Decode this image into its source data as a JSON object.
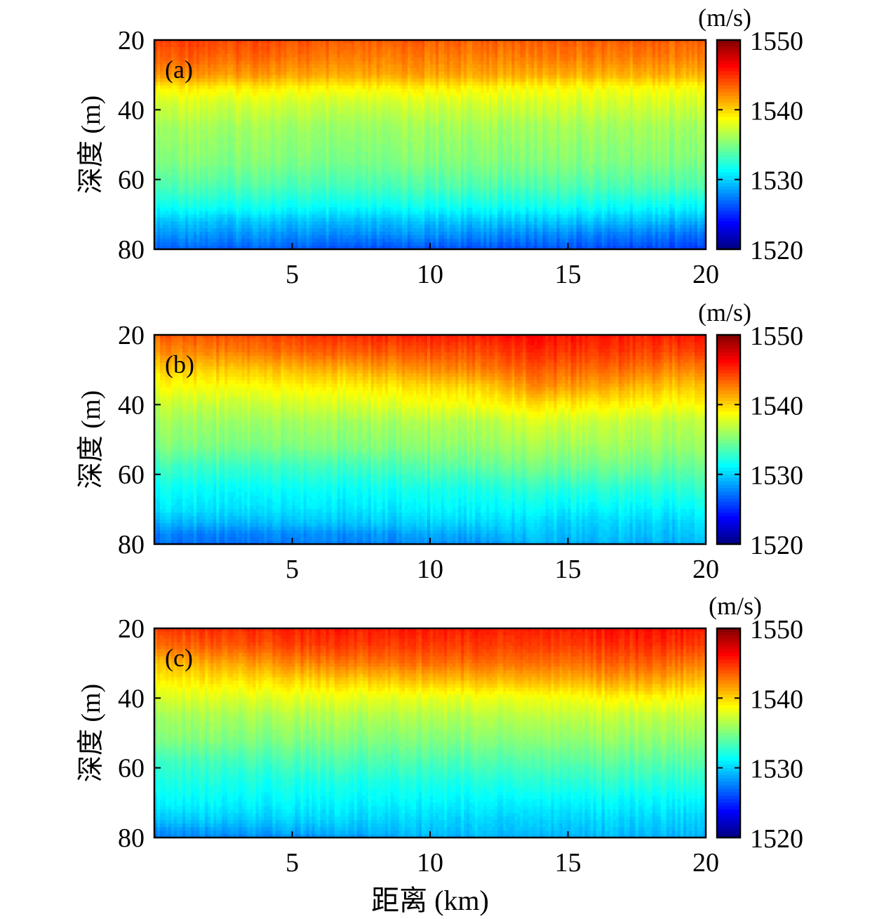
{
  "chart_data": [
    {
      "type": "heatmap",
      "panel_label": "(a)",
      "ylabel": "深度 (m)",
      "xlabel": "",
      "xlim": [
        0,
        20
      ],
      "ylim": [
        20,
        80
      ],
      "y_reversed": true,
      "xticks": [
        5,
        10,
        15,
        20
      ],
      "yticks": [
        20,
        40,
        60,
        80
      ],
      "colorbar": {
        "unit": "(m/s)",
        "range": [
          1520,
          1550
        ],
        "ticks": [
          1520,
          1530,
          1540,
          1550
        ]
      },
      "grid": false,
      "rows": [
        {
          "x": 0,
          "depth": [
            20,
            25,
            30,
            34,
            38,
            45,
            55,
            62,
            68,
            72,
            76,
            80
          ],
          "speed": [
            1544.5,
            1543.5,
            1542.0,
            1539.0,
            1537.5,
            1536.0,
            1535.0,
            1533.5,
            1531.5,
            1529.5,
            1528.0,
            1526.5
          ]
        },
        {
          "x": 5,
          "depth": [
            20,
            25,
            30,
            34,
            38,
            45,
            55,
            62,
            68,
            72,
            76,
            80
          ],
          "speed": [
            1544.0,
            1543.0,
            1541.5,
            1539.0,
            1537.5,
            1536.0,
            1535.0,
            1533.5,
            1531.5,
            1529.5,
            1528.0,
            1526.5
          ]
        },
        {
          "x": 10,
          "depth": [
            20,
            25,
            30,
            34,
            38,
            45,
            55,
            62,
            68,
            72,
            76,
            80
          ],
          "speed": [
            1543.5,
            1542.5,
            1541.5,
            1539.0,
            1537.5,
            1536.0,
            1535.0,
            1533.5,
            1531.5,
            1529.5,
            1528.0,
            1526.0
          ]
        },
        {
          "x": 15,
          "depth": [
            20,
            25,
            30,
            34,
            38,
            45,
            55,
            62,
            68,
            72,
            76,
            80
          ],
          "speed": [
            1543.5,
            1542.5,
            1541.0,
            1538.5,
            1537.5,
            1536.0,
            1535.0,
            1533.5,
            1531.5,
            1529.5,
            1527.5,
            1526.0
          ]
        },
        {
          "x": 20,
          "depth": [
            20,
            25,
            30,
            34,
            38,
            45,
            55,
            62,
            68,
            72,
            76,
            80
          ],
          "speed": [
            1543.5,
            1542.5,
            1541.0,
            1538.5,
            1537.5,
            1536.0,
            1535.0,
            1533.5,
            1531.0,
            1529.0,
            1527.0,
            1525.5
          ]
        }
      ]
    },
    {
      "type": "heatmap",
      "panel_label": "(b)",
      "ylabel": "深度 (m)",
      "xlabel": "",
      "xlim": [
        0,
        20
      ],
      "ylim": [
        20,
        80
      ],
      "y_reversed": true,
      "xticks": [
        5,
        10,
        15,
        20
      ],
      "yticks": [
        20,
        40,
        60,
        80
      ],
      "colorbar": {
        "unit": "(m/s)",
        "range": [
          1520,
          1550
        ],
        "ticks": [
          1520,
          1530,
          1540,
          1550
        ]
      },
      "grid": false,
      "rows": [
        {
          "x": 0,
          "depth": [
            20,
            25,
            30,
            35,
            40,
            45,
            52,
            58,
            64,
            70,
            74,
            77,
            80
          ],
          "speed": [
            1543.5,
            1542.0,
            1540.0,
            1538.5,
            1537.0,
            1536.0,
            1535.0,
            1533.0,
            1531.5,
            1530.5,
            1529.0,
            1527.5,
            1527.0
          ]
        },
        {
          "x": 7,
          "depth": [
            20,
            25,
            30,
            35,
            40,
            45,
            52,
            58,
            64,
            70,
            74,
            77,
            80
          ],
          "speed": [
            1545.0,
            1543.5,
            1541.0,
            1539.0,
            1537.5,
            1536.0,
            1535.0,
            1533.0,
            1531.5,
            1530.5,
            1529.5,
            1528.0,
            1527.5
          ]
        },
        {
          "x": 12,
          "depth": [
            20,
            25,
            30,
            35,
            40,
            45,
            52,
            58,
            64,
            70,
            74,
            77,
            80
          ],
          "speed": [
            1545.5,
            1544.0,
            1542.5,
            1540.0,
            1538.5,
            1536.5,
            1535.5,
            1534.0,
            1532.0,
            1531.0,
            1530.0,
            1529.0,
            1528.0
          ]
        },
        {
          "x": 14,
          "depth": [
            20,
            25,
            30,
            35,
            40,
            45,
            52,
            58,
            64,
            70,
            74,
            77,
            80
          ],
          "speed": [
            1546.0,
            1545.0,
            1543.5,
            1542.0,
            1539.5,
            1537.5,
            1536.0,
            1534.5,
            1532.5,
            1531.0,
            1530.0,
            1529.5,
            1529.0
          ]
        },
        {
          "x": 17,
          "depth": [
            20,
            25,
            30,
            35,
            40,
            45,
            52,
            58,
            64,
            70,
            74,
            77,
            80
          ],
          "speed": [
            1545.5,
            1544.5,
            1543.0,
            1541.0,
            1539.0,
            1537.0,
            1536.0,
            1534.5,
            1532.5,
            1531.0,
            1530.0,
            1529.5,
            1529.0
          ]
        },
        {
          "x": 20,
          "depth": [
            20,
            25,
            30,
            35,
            40,
            45,
            52,
            58,
            64,
            70,
            74,
            77,
            80
          ],
          "speed": [
            1545.5,
            1544.0,
            1542.0,
            1540.0,
            1538.5,
            1536.5,
            1535.5,
            1534.0,
            1532.5,
            1531.0,
            1530.0,
            1529.5,
            1529.0
          ]
        }
      ]
    },
    {
      "type": "heatmap",
      "panel_label": "(c)",
      "ylabel": "深度 (m)",
      "xlabel": "距离 (km)",
      "xlim": [
        0,
        20
      ],
      "ylim": [
        20,
        80
      ],
      "y_reversed": true,
      "xticks": [
        5,
        10,
        15,
        20
      ],
      "yticks": [
        20,
        40,
        60,
        80
      ],
      "colorbar": {
        "unit": "(m/s)",
        "range": [
          1520,
          1550
        ],
        "ticks": [
          1520,
          1530,
          1540,
          1550
        ]
      },
      "grid": false,
      "rows": [
        {
          "x": 0,
          "depth": [
            20,
            25,
            30,
            35,
            40,
            45,
            52,
            58,
            64,
            70,
            75,
            78,
            80
          ],
          "speed": [
            1544.5,
            1543.0,
            1540.5,
            1539.0,
            1537.5,
            1536.0,
            1535.0,
            1533.0,
            1532.0,
            1531.0,
            1529.5,
            1528.0,
            1527.5
          ]
        },
        {
          "x": 6,
          "depth": [
            20,
            25,
            30,
            35,
            40,
            45,
            52,
            58,
            64,
            70,
            75,
            78,
            80
          ],
          "speed": [
            1545.5,
            1544.5,
            1542.5,
            1540.0,
            1538.0,
            1536.5,
            1535.0,
            1533.5,
            1532.0,
            1531.0,
            1530.0,
            1529.0,
            1528.0
          ]
        },
        {
          "x": 10,
          "depth": [
            20,
            25,
            30,
            35,
            40,
            45,
            52,
            58,
            64,
            70,
            75,
            78,
            80
          ],
          "speed": [
            1545.5,
            1544.5,
            1543.0,
            1540.5,
            1538.0,
            1536.5,
            1535.0,
            1533.5,
            1532.0,
            1531.0,
            1530.0,
            1529.5,
            1529.0
          ]
        },
        {
          "x": 15,
          "depth": [
            20,
            25,
            30,
            35,
            40,
            45,
            52,
            58,
            64,
            70,
            75,
            78,
            80
          ],
          "speed": [
            1545.5,
            1544.5,
            1543.0,
            1541.0,
            1538.5,
            1537.0,
            1535.5,
            1534.0,
            1532.5,
            1531.0,
            1530.0,
            1529.5,
            1529.0
          ]
        },
        {
          "x": 18,
          "depth": [
            20,
            25,
            30,
            35,
            40,
            45,
            52,
            58,
            64,
            70,
            75,
            78,
            80
          ],
          "speed": [
            1546.0,
            1545.0,
            1543.5,
            1541.5,
            1539.0,
            1537.0,
            1535.5,
            1534.0,
            1532.5,
            1531.0,
            1530.0,
            1529.5,
            1529.0
          ]
        },
        {
          "x": 20,
          "depth": [
            20,
            25,
            30,
            35,
            40,
            45,
            52,
            58,
            64,
            70,
            75,
            78,
            80
          ],
          "speed": [
            1545.5,
            1544.5,
            1542.5,
            1540.5,
            1538.5,
            1537.0,
            1535.5,
            1534.0,
            1532.5,
            1531.0,
            1530.0,
            1529.5,
            1529.0
          ]
        }
      ]
    }
  ]
}
